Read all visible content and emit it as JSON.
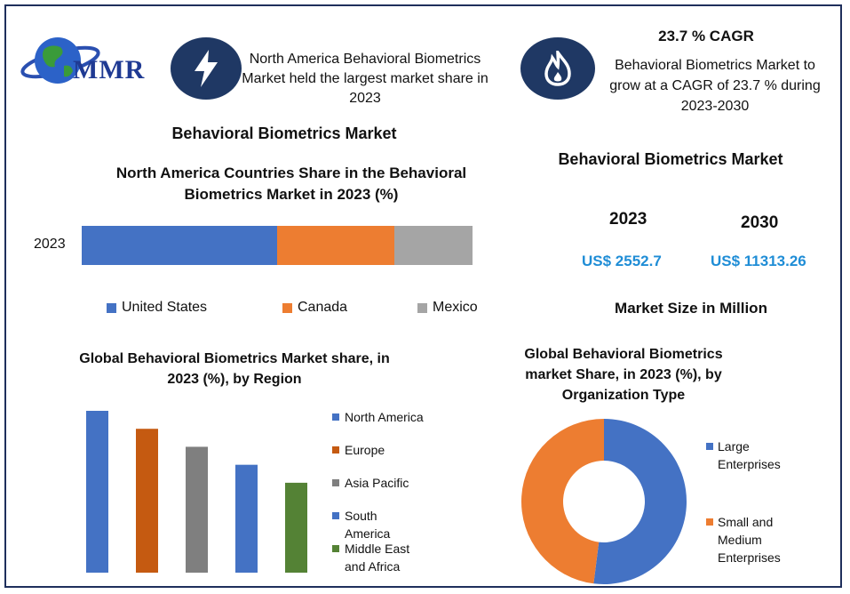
{
  "logo": {
    "text": "MMR"
  },
  "callout_left": {
    "icon": "lightning-icon",
    "text": "North America Behavioral Biometrics Market held the largest market share in 2023"
  },
  "callout_right": {
    "icon": "flame-icon",
    "heading": "23.7 % CAGR",
    "text": "Behavioral Biometrics Market to grow at a CAGR of 23.7 % during 2023-2030"
  },
  "left_section_title": "Behavioral Biometrics Market",
  "market_size": {
    "title": "Behavioral Biometrics Market",
    "year_a": "2023",
    "year_b": "2030",
    "value_a": "US$ 2552.7",
    "value_b": "US$ 11313.26",
    "unit_note": "Market Size in Million"
  },
  "chart_data": [
    {
      "type": "bar",
      "orientation": "horizontal-stacked",
      "title": "North America Countries Share in the Behavioral Biometrics Market in 2023 (%)",
      "categories": [
        "2023"
      ],
      "series": [
        {
          "name": "United States",
          "values": [
            50
          ],
          "color": "#4472c4"
        },
        {
          "name": "Canada",
          "values": [
            30
          ],
          "color": "#ed7d31"
        },
        {
          "name": "Mexico",
          "values": [
            20
          ],
          "color": "#a5a5a5"
        }
      ],
      "legend": "bottom"
    },
    {
      "type": "bar",
      "title": "Global Behavioral Biometrics Market share, in 2023 (%), by Region",
      "categories": [
        "North America",
        "Europe",
        "Asia Pacific",
        "South America",
        "Middle East and Africa"
      ],
      "values": [
        36,
        32,
        28,
        24,
        20
      ],
      "colors": [
        "#4472c4",
        "#c55a11",
        "#7f7f7f",
        "#4472c4",
        "#548235"
      ],
      "legend": "right"
    },
    {
      "type": "pie",
      "style": "donut",
      "title": "Global Behavioral Biometrics market Share, in 2023 (%), by Organization Type",
      "categories": [
        "Large Enterprises",
        "Small and Medium Enterprises"
      ],
      "values": [
        52,
        48
      ],
      "colors": [
        "#4472c4",
        "#ed7d31"
      ],
      "legend": "right"
    }
  ]
}
